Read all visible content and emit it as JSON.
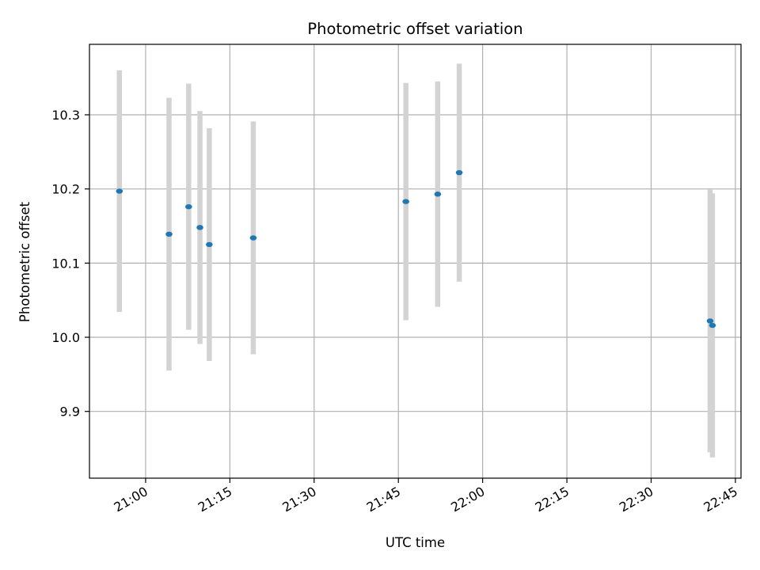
{
  "chart_data": {
    "type": "scatter",
    "title": "Photometric offset variation",
    "xlabel": "UTC time",
    "ylabel": "Photometric offset",
    "xlim": [
      "20:50:00",
      "22:46:00"
    ],
    "ylim": [
      9.81,
      10.395
    ],
    "xticks": [
      "21:00",
      "21:15",
      "21:30",
      "21:45",
      "22:00",
      "22:15",
      "22:30",
      "22:45"
    ],
    "yticks": [
      9.9,
      10.0,
      10.1,
      10.2,
      10.3
    ],
    "ytick_labels": [
      "9.9",
      "10.0",
      "10.1",
      "10.2",
      "10.3"
    ],
    "grid": true,
    "series": [
      {
        "marker_color": "#1f77b4",
        "errorbar_color": "#d3d3d3",
        "points": [
          {
            "x": "20:55:20",
            "y": 10.197,
            "yerr": 0.163
          },
          {
            "x": "21:04:10",
            "y": 10.139,
            "yerr": 0.184
          },
          {
            "x": "21:07:40",
            "y": 10.176,
            "yerr": 0.166
          },
          {
            "x": "21:09:40",
            "y": 10.148,
            "yerr": 0.157
          },
          {
            "x": "21:11:20",
            "y": 10.125,
            "yerr": 0.157
          },
          {
            "x": "21:19:10",
            "y": 10.134,
            "yerr": 0.157
          },
          {
            "x": "21:46:20",
            "y": 10.183,
            "yerr": 0.16
          },
          {
            "x": "21:52:00",
            "y": 10.193,
            "yerr": 0.152
          },
          {
            "x": "21:55:50",
            "y": 10.222,
            "yerr": 0.147
          },
          {
            "x": "22:40:30",
            "y": 10.022,
            "yerr": 0.177
          },
          {
            "x": "22:40:55",
            "y": 10.016,
            "yerr": 0.178
          }
        ]
      }
    ]
  }
}
